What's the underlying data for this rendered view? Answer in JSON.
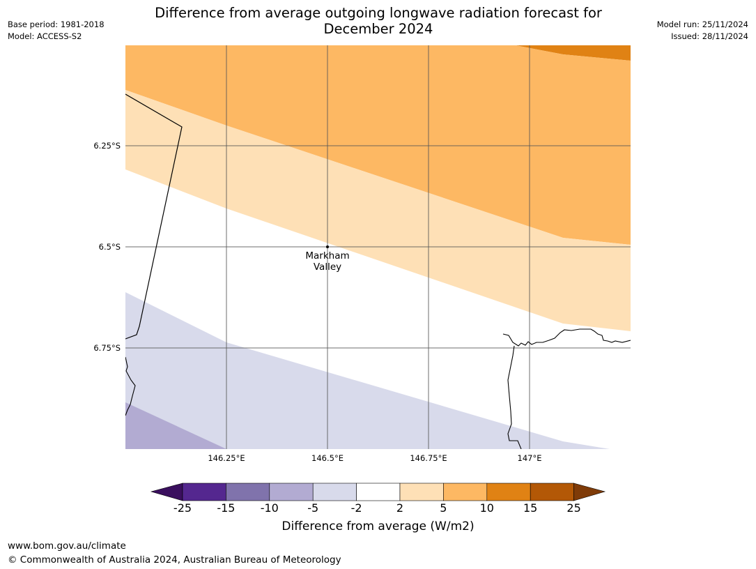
{
  "header": {
    "base_period": "Base period: 1981-2018",
    "model": "Model: ACCESS-S2",
    "model_run": "Model run: 25/11/2024",
    "issued": "Issued: 28/11/2024",
    "title_line1": "Difference from average outgoing longwave radiation forecast for",
    "title_line2": "December 2024"
  },
  "map": {
    "lat_labels": [
      "6.25°S",
      "6.5°S",
      "6.75°S"
    ],
    "lon_labels": [
      "146.25°E",
      "146.5°E",
      "146.75°E",
      "147°E"
    ],
    "place": {
      "line1": "Markham",
      "line2": "Valley"
    }
  },
  "legend": {
    "title": "Difference from average (W/m2)",
    "ticks": [
      "-25",
      "-15",
      "-10",
      "-5",
      "-2",
      "2",
      "5",
      "10",
      "15",
      "25"
    ],
    "colors": {
      "lt_-25": "#3a0f5e",
      "-25_-15": "#54278f",
      "-15_-10": "#8073ac",
      "-10_-5": "#b2abd2",
      "-5_-2": "#d8daeb",
      "-2_2": "#ffffff",
      "2_5": "#fee0b6",
      "5_10": "#fdb863",
      "10_15": "#e08214",
      "15_25": "#b35806",
      "gt_25": "#7f3b08"
    }
  },
  "footer": {
    "url": "www.bom.gov.au/climate",
    "copyright": "© Commonwealth of Australia 2024, Australian Bureau of Meteorology"
  }
}
